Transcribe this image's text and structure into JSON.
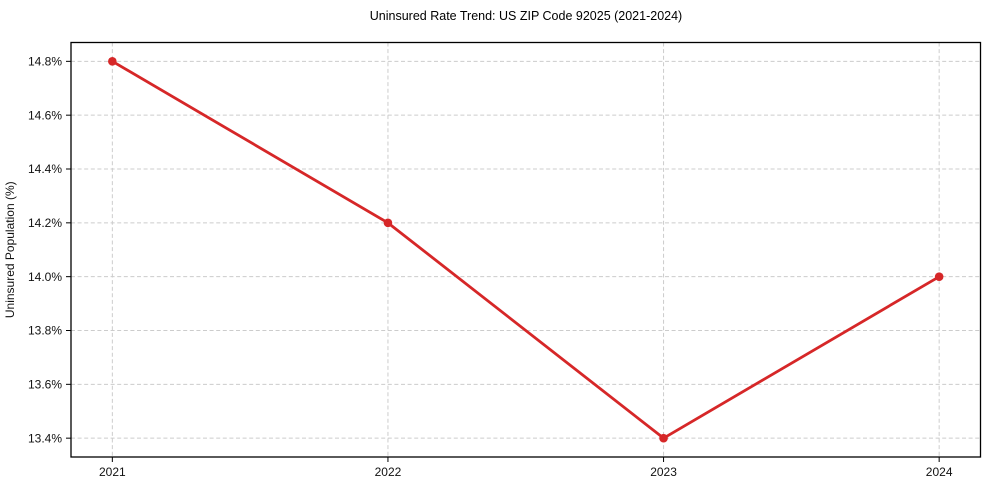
{
  "figure": {
    "background": "#ffffff"
  },
  "chart_data": {
    "type": "line",
    "title": "Uninsured Rate Trend: US ZIP Code 92025 (2021-2024)",
    "xlabel": "",
    "ylabel": "Uninsured Population (%)",
    "x": [
      2021,
      2022,
      2023,
      2024
    ],
    "x_tick_labels": [
      "2021",
      "2022",
      "2023",
      "2024"
    ],
    "series": [
      {
        "name": "uninsured-rate",
        "values": [
          14.8,
          14.2,
          13.4,
          14.0
        ],
        "color": "#d62728",
        "marker": "circle"
      }
    ],
    "y_ticks": [
      13.4,
      13.6,
      13.8,
      14.0,
      14.2,
      14.4,
      14.6,
      14.8
    ],
    "y_tick_labels": [
      "13.4%",
      "13.6%",
      "13.8%",
      "14.0%",
      "14.2%",
      "14.4%",
      "14.6%",
      "14.8%"
    ],
    "xlim": [
      2020.85,
      2024.15
    ],
    "ylim": [
      13.33,
      14.87
    ],
    "grid": true,
    "grid_style": "dashed",
    "legend": false
  },
  "colors": {
    "line": "#d62728",
    "grid": "#cccccc",
    "spine": "#000000",
    "text": "#111111"
  }
}
